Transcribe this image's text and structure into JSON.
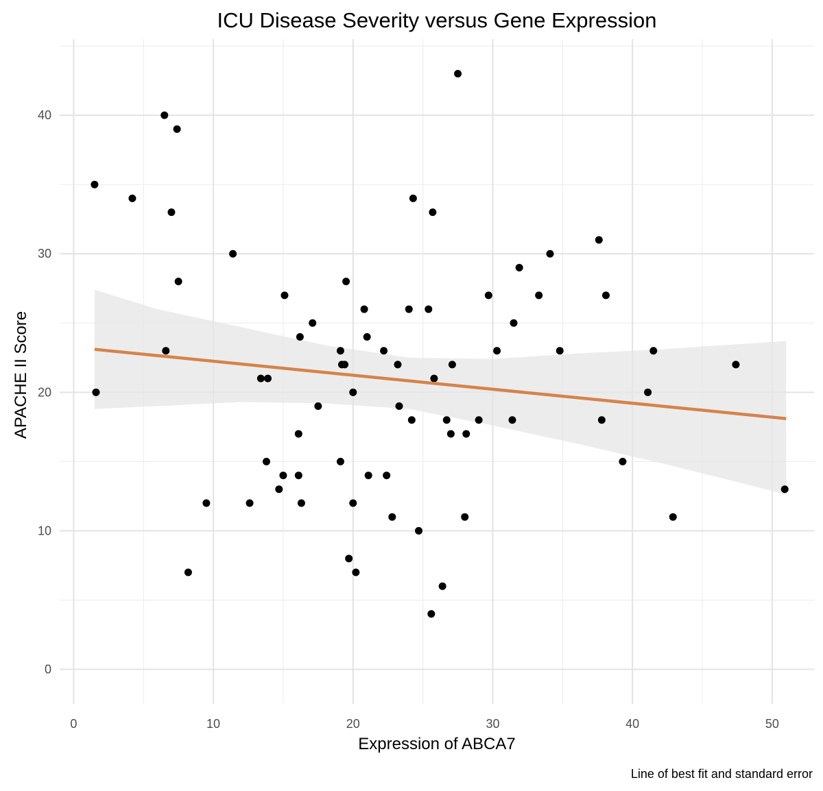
{
  "chart_data": {
    "type": "scatter",
    "title": "ICU Disease Severity versus Gene Expression",
    "xlabel": "Expression of ABCA7",
    "ylabel": "APACHE II Score",
    "caption": "Line of best fit and standard error",
    "xlim": [
      -1,
      53
    ],
    "ylim": [
      -2.5,
      45.5
    ],
    "x_ticks": [
      0,
      10,
      20,
      30,
      40,
      50
    ],
    "y_ticks": [
      0,
      10,
      20,
      30,
      40
    ],
    "grid": true,
    "point_color": "#000000",
    "fit_color": "#d5834a",
    "band_color": "#e5e5e5",
    "fit_line": {
      "x": [
        1.5,
        51
      ],
      "y": [
        23.1,
        18.1
      ]
    },
    "se_band": {
      "x": [
        1.5,
        6,
        12,
        18,
        24,
        30,
        36,
        42,
        48,
        51
      ],
      "lower": [
        18.8,
        19.0,
        19.3,
        19.2,
        18.8,
        17.6,
        16.3,
        14.9,
        13.4,
        12.6
      ],
      "upper": [
        27.4,
        26.0,
        24.7,
        23.4,
        22.5,
        22.4,
        22.8,
        23.1,
        23.5,
        23.7
      ]
    },
    "points": [
      {
        "x": 1.5,
        "y": 35
      },
      {
        "x": 1.6,
        "y": 20
      },
      {
        "x": 4.2,
        "y": 34
      },
      {
        "x": 6.5,
        "y": 40
      },
      {
        "x": 6.6,
        "y": 23
      },
      {
        "x": 7.0,
        "y": 33
      },
      {
        "x": 7.4,
        "y": 39
      },
      {
        "x": 7.5,
        "y": 28
      },
      {
        "x": 8.2,
        "y": 7
      },
      {
        "x": 9.5,
        "y": 12
      },
      {
        "x": 11.4,
        "y": 30
      },
      {
        "x": 12.6,
        "y": 12
      },
      {
        "x": 13.4,
        "y": 21
      },
      {
        "x": 13.9,
        "y": 21
      },
      {
        "x": 13.8,
        "y": 15
      },
      {
        "x": 14.7,
        "y": 13
      },
      {
        "x": 15.0,
        "y": 14
      },
      {
        "x": 15.1,
        "y": 27
      },
      {
        "x": 16.1,
        "y": 17
      },
      {
        "x": 16.1,
        "y": 14
      },
      {
        "x": 16.2,
        "y": 24
      },
      {
        "x": 16.3,
        "y": 12
      },
      {
        "x": 17.1,
        "y": 25
      },
      {
        "x": 17.5,
        "y": 19
      },
      {
        "x": 19.1,
        "y": 15
      },
      {
        "x": 19.1,
        "y": 23
      },
      {
        "x": 19.2,
        "y": 22
      },
      {
        "x": 19.4,
        "y": 22
      },
      {
        "x": 19.5,
        "y": 28
      },
      {
        "x": 19.7,
        "y": 8
      },
      {
        "x": 20.0,
        "y": 20
      },
      {
        "x": 20.0,
        "y": 12
      },
      {
        "x": 20.2,
        "y": 7
      },
      {
        "x": 20.8,
        "y": 26
      },
      {
        "x": 21.0,
        "y": 24
      },
      {
        "x": 21.1,
        "y": 14
      },
      {
        "x": 22.2,
        "y": 23
      },
      {
        "x": 22.4,
        "y": 14
      },
      {
        "x": 22.8,
        "y": 11
      },
      {
        "x": 23.2,
        "y": 22
      },
      {
        "x": 23.3,
        "y": 19
      },
      {
        "x": 24.0,
        "y": 26
      },
      {
        "x": 24.2,
        "y": 18
      },
      {
        "x": 24.3,
        "y": 34
      },
      {
        "x": 24.7,
        "y": 10
      },
      {
        "x": 25.4,
        "y": 26
      },
      {
        "x": 25.6,
        "y": 4
      },
      {
        "x": 25.7,
        "y": 33
      },
      {
        "x": 25.8,
        "y": 21
      },
      {
        "x": 26.4,
        "y": 6
      },
      {
        "x": 26.7,
        "y": 18
      },
      {
        "x": 27.0,
        "y": 17
      },
      {
        "x": 27.1,
        "y": 22
      },
      {
        "x": 27.5,
        "y": 43
      },
      {
        "x": 28.0,
        "y": 11
      },
      {
        "x": 28.1,
        "y": 17
      },
      {
        "x": 29.0,
        "y": 18
      },
      {
        "x": 29.7,
        "y": 27
      },
      {
        "x": 30.3,
        "y": 23
      },
      {
        "x": 31.4,
        "y": 18
      },
      {
        "x": 31.5,
        "y": 25
      },
      {
        "x": 31.9,
        "y": 29
      },
      {
        "x": 33.3,
        "y": 27
      },
      {
        "x": 34.1,
        "y": 30
      },
      {
        "x": 34.8,
        "y": 23
      },
      {
        "x": 37.6,
        "y": 31
      },
      {
        "x": 37.8,
        "y": 18
      },
      {
        "x": 38.1,
        "y": 27
      },
      {
        "x": 39.3,
        "y": 15
      },
      {
        "x": 41.1,
        "y": 20
      },
      {
        "x": 41.5,
        "y": 23
      },
      {
        "x": 42.9,
        "y": 11
      },
      {
        "x": 47.4,
        "y": 22
      },
      {
        "x": 50.9,
        "y": 13
      }
    ]
  }
}
